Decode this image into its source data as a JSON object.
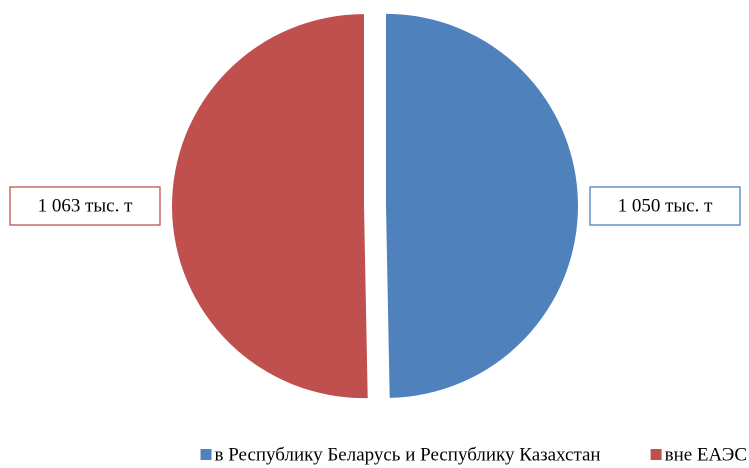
{
  "chart_data": {
    "type": "pie",
    "categories": [
      "в Республику Беларусь и Республику Казахстан",
      "вне ЕАЭС"
    ],
    "values": [
      1050,
      1063
    ],
    "value_labels": [
      "1 050 тыс. т",
      "1 063 тыс. т"
    ],
    "colors": [
      "#4f81bd",
      "#c0504d"
    ]
  }
}
